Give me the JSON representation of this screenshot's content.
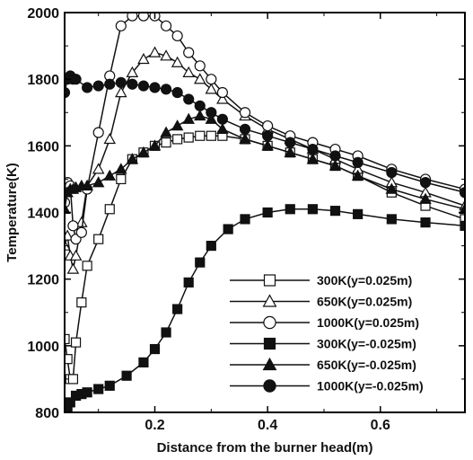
{
  "chart_data": {
    "type": "line",
    "title": "",
    "xlabel": "Distance from the burner head(m)",
    "ylabel": "Temperature(K)",
    "xlim": [
      0.04,
      0.75
    ],
    "ylim": [
      800,
      2000
    ],
    "xticks": [
      0.2,
      0.4,
      0.6
    ],
    "xtick_labels": [
      "0.2",
      "0.4",
      "0.6"
    ],
    "yticks": [
      800,
      1000,
      1200,
      1400,
      1600,
      1800,
      2000
    ],
    "ytick_labels": [
      "800",
      "1000",
      "1200",
      "1400",
      "1600",
      "1800",
      "2000"
    ],
    "grid": false,
    "legend_position": "bottom-right",
    "series": [
      {
        "name": "300K(y=0.025m)",
        "marker": "square-open",
        "x": [
          0.04,
          0.045,
          0.05,
          0.055,
          0.06,
          0.07,
          0.08,
          0.1,
          0.12,
          0.14,
          0.16,
          0.18,
          0.2,
          0.22,
          0.24,
          0.26,
          0.28,
          0.3,
          0.32,
          0.36,
          0.4,
          0.44,
          0.48,
          0.52,
          0.56,
          0.62,
          0.68,
          0.75
        ],
        "y": [
          1020,
          960,
          900,
          900,
          1010,
          1130,
          1240,
          1320,
          1410,
          1500,
          1560,
          1580,
          1600,
          1610,
          1620,
          1625,
          1630,
          1630,
          1630,
          1620,
          1600,
          1580,
          1560,
          1540,
          1510,
          1460,
          1420,
          1380
        ]
      },
      {
        "name": "650K(y=0.025m)",
        "marker": "triangle-open",
        "x": [
          0.04,
          0.045,
          0.05,
          0.055,
          0.06,
          0.07,
          0.08,
          0.1,
          0.12,
          0.14,
          0.16,
          0.18,
          0.2,
          0.22,
          0.24,
          0.26,
          0.28,
          0.3,
          0.32,
          0.36,
          0.4,
          0.44,
          0.48,
          0.52,
          0.56,
          0.62,
          0.68,
          0.75
        ],
        "y": [
          1300,
          1330,
          1270,
          1230,
          1270,
          1370,
          1480,
          1530,
          1620,
          1760,
          1820,
          1860,
          1880,
          1870,
          1850,
          1820,
          1800,
          1770,
          1740,
          1690,
          1650,
          1620,
          1590,
          1560,
          1530,
          1490,
          1460,
          1420
        ]
      },
      {
        "name": "1000K(y=0.025m)",
        "marker": "circle-open",
        "x": [
          0.04,
          0.045,
          0.05,
          0.055,
          0.06,
          0.07,
          0.08,
          0.1,
          0.12,
          0.14,
          0.16,
          0.18,
          0.2,
          0.22,
          0.24,
          0.26,
          0.28,
          0.3,
          0.32,
          0.36,
          0.4,
          0.44,
          0.48,
          0.52,
          0.56,
          0.62,
          0.68,
          0.75
        ],
        "y": [
          1430,
          1490,
          1480,
          1360,
          1320,
          1340,
          1470,
          1640,
          1810,
          1960,
          1990,
          1990,
          1990,
          1960,
          1930,
          1880,
          1840,
          1800,
          1760,
          1700,
          1660,
          1630,
          1610,
          1590,
          1570,
          1530,
          1500,
          1470
        ]
      },
      {
        "name": "300K(y=-0.025m)",
        "marker": "square-filled",
        "x": [
          0.04,
          0.045,
          0.05,
          0.06,
          0.07,
          0.08,
          0.1,
          0.12,
          0.15,
          0.18,
          0.2,
          0.22,
          0.24,
          0.26,
          0.28,
          0.3,
          0.33,
          0.36,
          0.4,
          0.44,
          0.48,
          0.52,
          0.56,
          0.62,
          0.68,
          0.75
        ],
        "y": [
          805,
          815,
          830,
          850,
          855,
          860,
          870,
          880,
          910,
          950,
          990,
          1040,
          1110,
          1190,
          1250,
          1300,
          1350,
          1380,
          1400,
          1410,
          1410,
          1405,
          1395,
          1380,
          1370,
          1360
        ]
      },
      {
        "name": "650K(y=-0.025m)",
        "marker": "triangle-filled",
        "x": [
          0.04,
          0.045,
          0.05,
          0.055,
          0.06,
          0.07,
          0.08,
          0.1,
          0.12,
          0.14,
          0.16,
          0.18,
          0.2,
          0.22,
          0.24,
          0.26,
          0.28,
          0.3,
          0.32,
          0.36,
          0.4,
          0.44,
          0.48,
          0.52,
          0.56,
          0.62,
          0.68,
          0.75
        ],
        "y": [
          1410,
          1460,
          1470,
          1470,
          1475,
          1480,
          1480,
          1490,
          1510,
          1530,
          1560,
          1580,
          1600,
          1640,
          1660,
          1680,
          1690,
          1680,
          1650,
          1620,
          1600,
          1580,
          1560,
          1540,
          1510,
          1470,
          1440,
          1410
        ]
      },
      {
        "name": "1000K(y=-0.025m)",
        "marker": "circle-filled",
        "x": [
          0.04,
          0.045,
          0.05,
          0.055,
          0.06,
          0.08,
          0.1,
          0.12,
          0.14,
          0.16,
          0.18,
          0.2,
          0.22,
          0.24,
          0.26,
          0.28,
          0.3,
          0.32,
          0.36,
          0.4,
          0.44,
          0.48,
          0.52,
          0.56,
          0.62,
          0.68,
          0.75
        ],
        "y": [
          1760,
          1800,
          1810,
          1800,
          1800,
          1775,
          1780,
          1785,
          1790,
          1785,
          1780,
          1775,
          1770,
          1760,
          1740,
          1720,
          1700,
          1680,
          1650,
          1630,
          1610,
          1590,
          1570,
          1550,
          1520,
          1490,
          1460
        ]
      }
    ]
  }
}
